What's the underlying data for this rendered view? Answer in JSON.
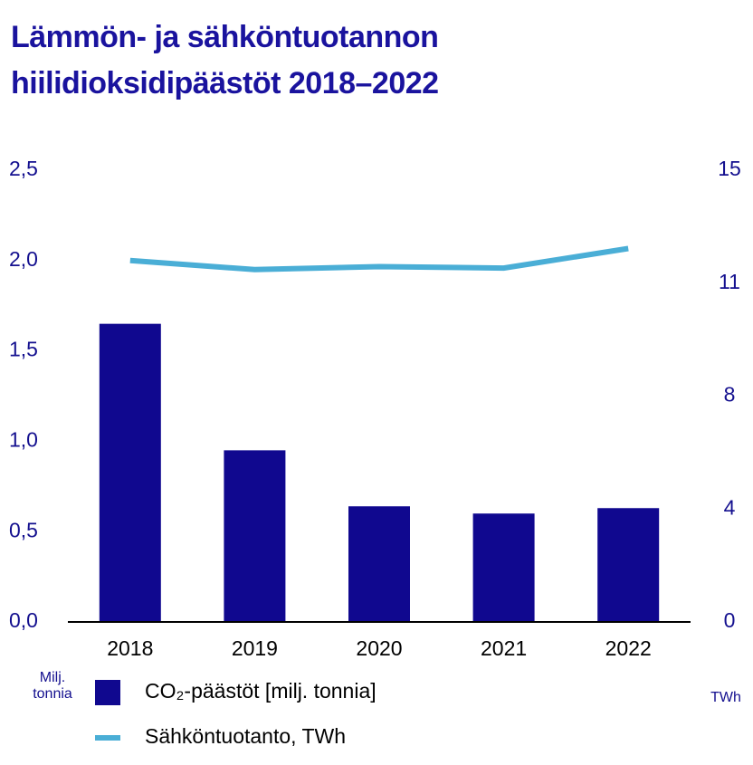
{
  "chart_data": {
    "type": "bar-line",
    "title": "Lämmön- ja sähköntuotannon hiilidioksidipäästöt 2018–2022",
    "y_label": "Milj. tonnia",
    "y2_label": "TWh",
    "categories": [
      "2018",
      "2019",
      "2020",
      "2021",
      "2022"
    ],
    "series": [
      {
        "name": "CO₂-päästöt [milj. tonnia]",
        "type": "bar",
        "color": "#10088f",
        "values": [
          1.65,
          0.95,
          0.64,
          0.6,
          0.63
        ]
      },
      {
        "name": "Sähköntuotanto, TWh",
        "type": "line",
        "axis": "y2",
        "color": "#4aaed6",
        "values": [
          12.0,
          11.7,
          11.8,
          11.75,
          12.4
        ]
      }
    ],
    "ylim": [
      0,
      2.5
    ],
    "yticks": [
      {
        "value": 0,
        "label": "0,0"
      },
      {
        "value": 0.5,
        "label": "0,5"
      },
      {
        "value": 1,
        "label": "1,0"
      },
      {
        "value": 1.5,
        "label": "1,5"
      },
      {
        "value": 2,
        "label": "2,0"
      },
      {
        "value": 2.5,
        "label": "2,5"
      }
    ],
    "y2lim": [
      0,
      15
    ],
    "y2ticks": [
      0,
      {
        "value": 3.75,
        "label": "4"
      },
      {
        "value": 7.5,
        "label": "8"
      },
      {
        "value": 11.25,
        "label": "11"
      },
      15
    ],
    "grid": false
  }
}
